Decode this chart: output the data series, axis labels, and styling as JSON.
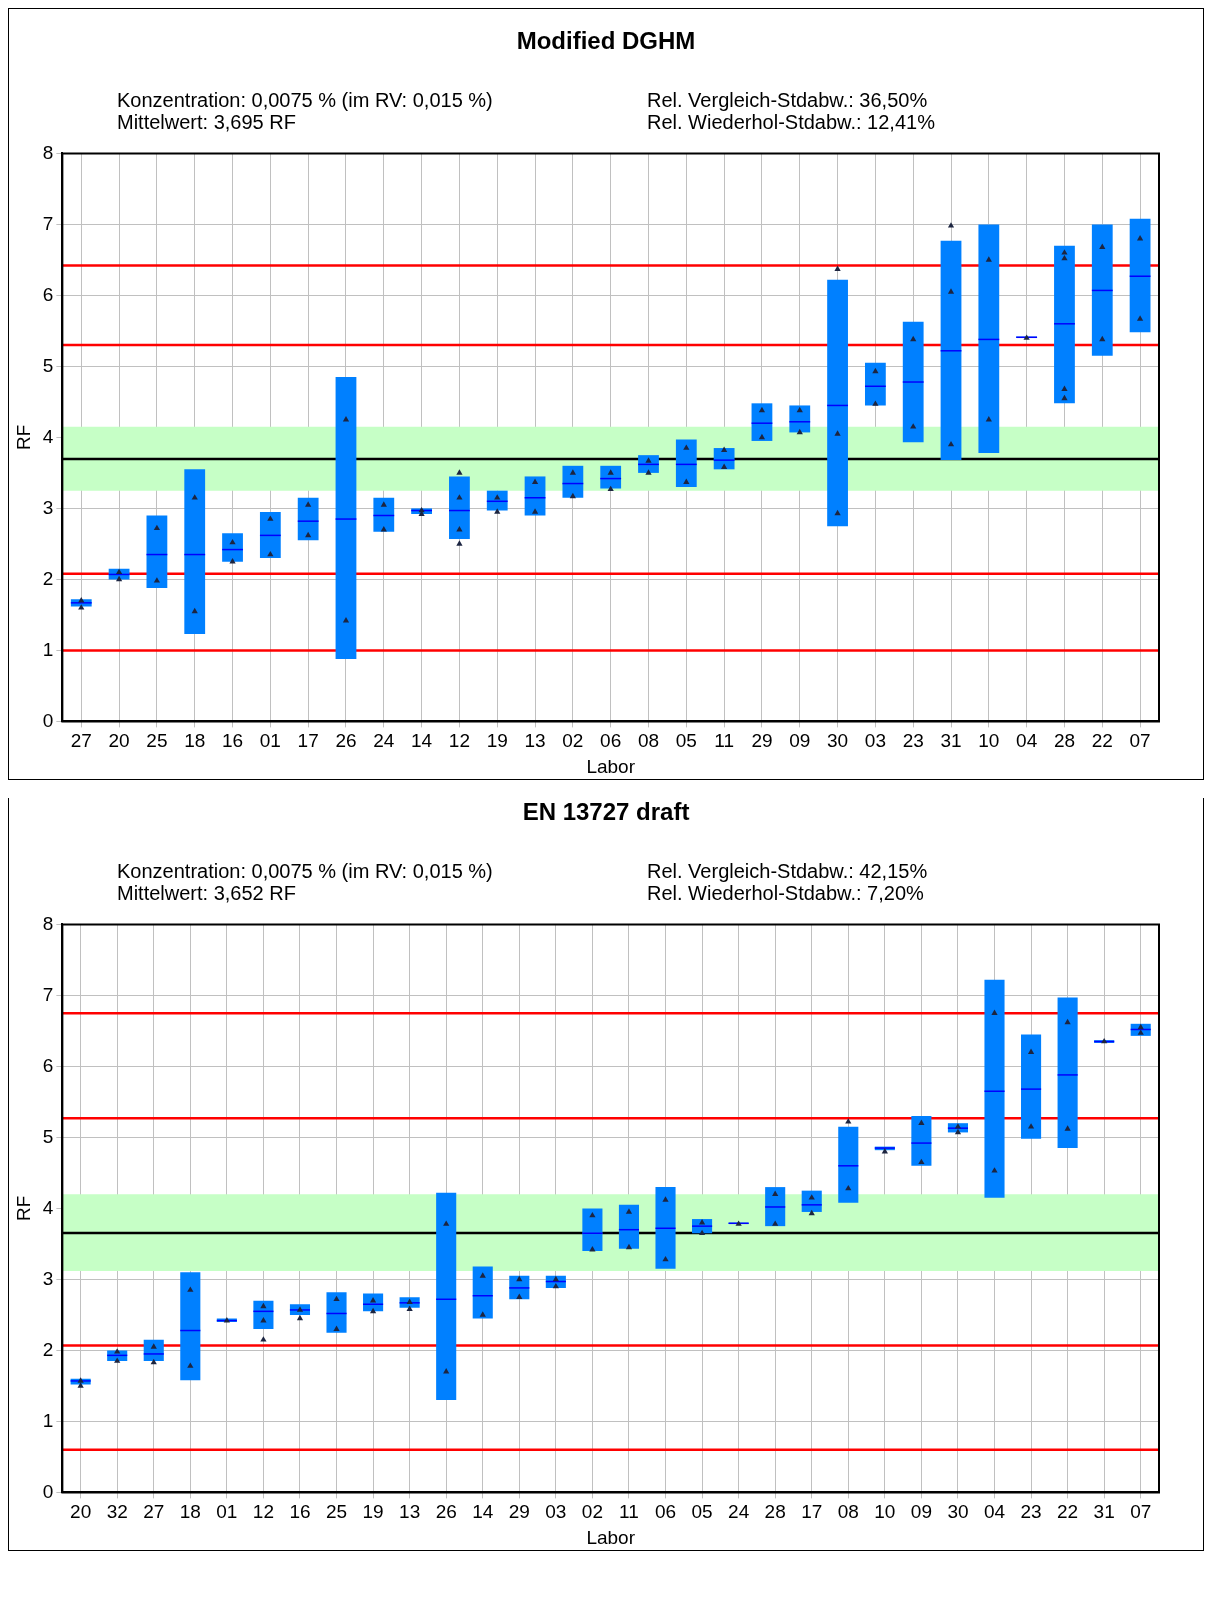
{
  "chart_data": [
    {
      "type": "box",
      "title": "Modified DGHM",
      "annotations": [
        "Konzentration:  0,0075 % (im RV: 0,015 %)",
        "Mittelwert:  3,695 RF",
        "Rel. Vergleich-Stdabw.:  36,50%",
        "Rel. Wiederhol-Stdabw.:  12,41%"
      ],
      "xlabel": "Labor",
      "ylabel": "RF",
      "ylim": [
        0,
        8
      ],
      "yticks": [
        0,
        1,
        2,
        3,
        4,
        5,
        6,
        7,
        8
      ],
      "grid": true,
      "legend": false,
      "categories": [
        "27",
        "20",
        "25",
        "18",
        "16",
        "01",
        "17",
        "26",
        "24",
        "14",
        "12",
        "19",
        "13",
        "02",
        "06",
        "08",
        "05",
        "11",
        "29",
        "09",
        "30",
        "03",
        "23",
        "31",
        "10",
        "04",
        "28",
        "22",
        "07"
      ],
      "series": [
        {
          "type": "box",
          "color": "#0080ff",
          "boxes": [
            {
              "low": 1.62,
              "q1": 1.62,
              "median": 1.67,
              "q3": 1.72,
              "high": 1.72
            },
            {
              "low": 2.0,
              "q1": 2.0,
              "median": 2.07,
              "q3": 2.15,
              "high": 2.15
            },
            {
              "low": 1.88,
              "q1": 1.88,
              "median": 2.35,
              "q3": 2.9,
              "high": 2.9
            },
            {
              "low": 1.23,
              "q1": 1.23,
              "median": 2.35,
              "q3": 3.55,
              "high": 3.55
            },
            {
              "low": 2.25,
              "q1": 2.25,
              "median": 2.42,
              "q3": 2.65,
              "high": 2.65
            },
            {
              "low": 2.3,
              "q1": 2.3,
              "median": 2.62,
              "q3": 2.95,
              "high": 2.95
            },
            {
              "low": 2.55,
              "q1": 2.55,
              "median": 2.82,
              "q3": 3.15,
              "high": 3.15
            },
            {
              "low": 0.88,
              "q1": 0.88,
              "median": 2.85,
              "q3": 4.85,
              "high": 4.85
            },
            {
              "low": 2.67,
              "q1": 2.67,
              "median": 2.9,
              "q3": 3.15,
              "high": 3.15
            },
            {
              "low": 2.92,
              "q1": 2.92,
              "median": 2.97,
              "q3": 3.0,
              "high": 3.0
            },
            {
              "low": 2.57,
              "q1": 2.57,
              "median": 2.97,
              "q3": 3.45,
              "high": 3.45
            },
            {
              "low": 2.97,
              "q1": 2.97,
              "median": 3.1,
              "q3": 3.25,
              "high": 3.25
            },
            {
              "low": 2.9,
              "q1": 2.9,
              "median": 3.15,
              "q3": 3.45,
              "high": 3.45
            },
            {
              "low": 3.15,
              "q1": 3.15,
              "median": 3.35,
              "q3": 3.6,
              "high": 3.6
            },
            {
              "low": 3.28,
              "q1": 3.28,
              "median": 3.42,
              "q3": 3.6,
              "high": 3.6
            },
            {
              "low": 3.5,
              "q1": 3.5,
              "median": 3.62,
              "q3": 3.75,
              "high": 3.75
            },
            {
              "low": 3.3,
              "q1": 3.3,
              "median": 3.62,
              "q3": 3.97,
              "high": 3.97
            },
            {
              "low": 3.55,
              "q1": 3.55,
              "median": 3.68,
              "q3": 3.85,
              "high": 3.85
            },
            {
              "low": 3.95,
              "q1": 3.95,
              "median": 4.2,
              "q3": 4.48,
              "high": 4.48
            },
            {
              "low": 4.07,
              "q1": 4.07,
              "median": 4.22,
              "q3": 4.45,
              "high": 4.45
            },
            {
              "low": 2.75,
              "q1": 2.75,
              "median": 4.45,
              "q3": 6.22,
              "high": 6.22
            },
            {
              "low": 4.45,
              "q1": 4.45,
              "median": 4.72,
              "q3": 5.05,
              "high": 5.05
            },
            {
              "low": 3.93,
              "q1": 3.93,
              "median": 4.78,
              "q3": 5.63,
              "high": 5.63
            },
            {
              "low": 3.68,
              "q1": 3.68,
              "median": 5.22,
              "q3": 6.77,
              "high": 6.77
            },
            {
              "low": 3.78,
              "q1": 3.78,
              "median": 5.38,
              "q3": 7.0,
              "high": 7.0
            },
            {
              "low": 5.4,
              "q1": 5.4,
              "median": 5.41,
              "q3": 5.42,
              "high": 5.42
            },
            {
              "low": 4.48,
              "q1": 4.48,
              "median": 5.6,
              "q3": 6.7,
              "high": 6.7
            },
            {
              "low": 5.15,
              "q1": 5.15,
              "median": 6.07,
              "q3": 7.0,
              "high": 7.0
            },
            {
              "low": 5.48,
              "q1": 5.48,
              "median": 6.27,
              "q3": 7.08,
              "high": 7.08
            }
          ]
        },
        {
          "type": "scatter",
          "color": "#1c2541",
          "marker": "triangle",
          "x": [
            "27",
            "27",
            "20",
            "20",
            "25",
            "25",
            "18",
            "18",
            "16",
            "16",
            "01",
            "01",
            "17",
            "17",
            "26",
            "26",
            "24",
            "24",
            "14",
            "14",
            "12",
            "12",
            "12",
            "12",
            "19",
            "19",
            "13",
            "13",
            "02",
            "02",
            "06",
            "06",
            "08",
            "08",
            "05",
            "05",
            "11",
            "11",
            "29",
            "29",
            "09",
            "09",
            "30",
            "30",
            "30",
            "03",
            "03",
            "23",
            "23",
            "31",
            "31",
            "31",
            "10",
            "10",
            "04",
            "28",
            "28",
            "28",
            "28",
            "22",
            "22",
            "07",
            "07"
          ],
          "values": [
            1.6,
            1.7,
            2.0,
            2.1,
            1.98,
            2.72,
            1.55,
            3.15,
            2.25,
            2.52,
            2.35,
            2.85,
            2.62,
            3.05,
            1.42,
            4.25,
            2.7,
            3.05,
            2.92,
            2.97,
            2.5,
            2.7,
            3.15,
            3.5,
            2.95,
            3.15,
            2.95,
            3.37,
            3.17,
            3.5,
            3.27,
            3.5,
            3.5,
            3.67,
            3.37,
            3.85,
            3.58,
            3.82,
            4.0,
            4.38,
            4.07,
            4.38,
            2.93,
            4.05,
            6.37,
            4.47,
            4.93,
            4.15,
            5.38,
            3.9,
            6.05,
            6.98,
            4.25,
            6.5,
            5.4,
            4.55,
            4.68,
            6.52,
            6.6,
            5.38,
            6.68,
            5.67,
            6.8
          ]
        }
      ],
      "ref_lines": [
        {
          "axis": "y",
          "value": 6.42,
          "color": "#ff0000"
        },
        {
          "axis": "y",
          "value": 5.3,
          "color": "#ff0000"
        },
        {
          "axis": "y",
          "value": 2.08,
          "color": "#ff0000"
        },
        {
          "axis": "y",
          "value": 1.0,
          "color": "#ff0000"
        },
        {
          "axis": "y",
          "value": 3.695,
          "color": "#000000"
        }
      ],
      "bands": [
        {
          "axis": "y",
          "from": 3.25,
          "to": 4.15,
          "color": "#c6ffc6"
        }
      ]
    },
    {
      "type": "box",
      "title": "EN 13727 draft",
      "annotations": [
        "Konzentration:  0,0075 % (im RV: 0,015 %)",
        "Mittelwert:  3,652 RF",
        "Rel. Vergleich-Stdabw.:  42,15%",
        "Rel. Wiederhol-Stdabw.:  7,20%"
      ],
      "xlabel": "Labor",
      "ylabel": "RF",
      "ylim": [
        0,
        8
      ],
      "yticks": [
        0,
        1,
        2,
        3,
        4,
        5,
        6,
        7,
        8
      ],
      "grid": true,
      "legend": false,
      "categories": [
        "20",
        "32",
        "27",
        "18",
        "01",
        "12",
        "16",
        "25",
        "19",
        "13",
        "26",
        "14",
        "29",
        "03",
        "02",
        "11",
        "06",
        "05",
        "24",
        "28",
        "17",
        "08",
        "10",
        "09",
        "30",
        "04",
        "23",
        "22",
        "31",
        "07"
      ],
      "series": [
        {
          "type": "box",
          "color": "#0080ff",
          "boxes": [
            {
              "low": 1.52,
              "q1": 1.52,
              "median": 1.57,
              "q3": 1.6,
              "high": 1.6
            },
            {
              "low": 1.85,
              "q1": 1.85,
              "median": 1.93,
              "q3": 2.0,
              "high": 2.0
            },
            {
              "low": 1.85,
              "q1": 1.85,
              "median": 1.95,
              "q3": 2.15,
              "high": 2.15
            },
            {
              "low": 1.58,
              "q1": 1.58,
              "median": 2.28,
              "q3": 3.1,
              "high": 3.1
            },
            {
              "low": 2.4,
              "q1": 2.4,
              "median": 2.42,
              "q3": 2.45,
              "high": 2.45
            },
            {
              "low": 2.3,
              "q1": 2.3,
              "median": 2.55,
              "q3": 2.7,
              "high": 2.7
            },
            {
              "low": 2.5,
              "q1": 2.5,
              "median": 2.57,
              "q3": 2.65,
              "high": 2.65
            },
            {
              "low": 2.25,
              "q1": 2.25,
              "median": 2.52,
              "q3": 2.82,
              "high": 2.82
            },
            {
              "low": 2.55,
              "q1": 2.55,
              "median": 2.65,
              "q3": 2.8,
              "high": 2.8
            },
            {
              "low": 2.6,
              "q1": 2.6,
              "median": 2.67,
              "q3": 2.75,
              "high": 2.75
            },
            {
              "low": 1.3,
              "q1": 1.3,
              "median": 2.72,
              "q3": 4.22,
              "high": 4.22
            },
            {
              "low": 2.45,
              "q1": 2.45,
              "median": 2.77,
              "q3": 3.18,
              "high": 3.18
            },
            {
              "low": 2.72,
              "q1": 2.72,
              "median": 2.88,
              "q3": 3.05,
              "high": 3.05
            },
            {
              "low": 2.88,
              "q1": 2.88,
              "median": 2.97,
              "q3": 3.05,
              "high": 3.05
            },
            {
              "low": 3.4,
              "q1": 3.4,
              "median": 3.65,
              "q3": 4.0,
              "high": 4.0
            },
            {
              "low": 3.43,
              "q1": 3.43,
              "median": 3.7,
              "q3": 4.05,
              "high": 4.05
            },
            {
              "low": 3.15,
              "q1": 3.15,
              "median": 3.72,
              "q3": 4.3,
              "high": 4.3
            },
            {
              "low": 3.65,
              "q1": 3.65,
              "median": 3.75,
              "q3": 3.85,
              "high": 3.85
            },
            {
              "low": 3.78,
              "q1": 3.78,
              "median": 3.79,
              "q3": 3.8,
              "high": 3.8
            },
            {
              "low": 3.75,
              "q1": 3.75,
              "median": 4.02,
              "q3": 4.3,
              "high": 4.3
            },
            {
              "low": 3.95,
              "q1": 3.95,
              "median": 4.05,
              "q3": 4.25,
              "high": 4.25
            },
            {
              "low": 4.08,
              "q1": 4.08,
              "median": 4.6,
              "q3": 5.15,
              "high": 5.15
            },
            {
              "low": 4.82,
              "q1": 4.82,
              "median": 4.85,
              "q3": 4.87,
              "high": 4.87
            },
            {
              "low": 4.6,
              "q1": 4.6,
              "median": 4.92,
              "q3": 5.3,
              "high": 5.3
            },
            {
              "low": 5.07,
              "q1": 5.07,
              "median": 5.13,
              "q3": 5.2,
              "high": 5.2
            },
            {
              "low": 4.15,
              "q1": 4.15,
              "median": 5.65,
              "q3": 7.22,
              "high": 7.22
            },
            {
              "low": 4.98,
              "q1": 4.98,
              "median": 5.68,
              "q3": 6.45,
              "high": 6.45
            },
            {
              "low": 4.85,
              "q1": 4.85,
              "median": 5.88,
              "q3": 6.97,
              "high": 6.97
            },
            {
              "low": 6.33,
              "q1": 6.33,
              "median": 6.35,
              "q3": 6.37,
              "high": 6.37
            },
            {
              "low": 6.43,
              "q1": 6.43,
              "median": 6.52,
              "q3": 6.6,
              "high": 6.6
            }
          ]
        },
        {
          "type": "scatter",
          "color": "#1c2541",
          "marker": "triangle",
          "x": [
            "20",
            "20",
            "32",
            "32",
            "27",
            "27",
            "18",
            "18",
            "01",
            "12",
            "12",
            "12",
            "16",
            "16",
            "25",
            "25",
            "19",
            "19",
            "13",
            "13",
            "26",
            "26",
            "14",
            "14",
            "29",
            "29",
            "03",
            "03",
            "02",
            "02",
            "11",
            "11",
            "06",
            "06",
            "05",
            "05",
            "24",
            "28",
            "28",
            "17",
            "17",
            "08",
            "08",
            "10",
            "09",
            "09",
            "30",
            "30",
            "04",
            "04",
            "23",
            "23",
            "22",
            "22",
            "31",
            "07",
            "07"
          ],
          "values": [
            1.5,
            1.57,
            1.85,
            1.98,
            1.83,
            2.05,
            1.78,
            2.85,
            2.42,
            2.15,
            2.42,
            2.62,
            2.45,
            2.57,
            2.3,
            2.72,
            2.55,
            2.7,
            2.58,
            2.68,
            1.7,
            3.78,
            2.5,
            3.05,
            2.75,
            3.0,
            2.9,
            3.0,
            3.42,
            3.9,
            3.45,
            3.95,
            3.28,
            4.12,
            3.65,
            3.8,
            3.78,
            3.78,
            4.2,
            3.93,
            4.15,
            4.28,
            5.22,
            4.8,
            4.65,
            5.2,
            5.07,
            5.15,
            4.53,
            6.75,
            5.15,
            6.2,
            5.12,
            6.62,
            6.35,
            6.47,
            6.55
          ]
        }
      ],
      "ref_lines": [
        {
          "axis": "y",
          "value": 6.75,
          "color": "#ff0000"
        },
        {
          "axis": "y",
          "value": 5.27,
          "color": "#ff0000"
        },
        {
          "axis": "y",
          "value": 2.07,
          "color": "#ff0000"
        },
        {
          "axis": "y",
          "value": 0.6,
          "color": "#ff0000"
        },
        {
          "axis": "y",
          "value": 3.652,
          "color": "#000000"
        }
      ],
      "bands": [
        {
          "axis": "y",
          "from": 3.12,
          "to": 4.2,
          "color": "#c6ffc6"
        }
      ]
    }
  ]
}
